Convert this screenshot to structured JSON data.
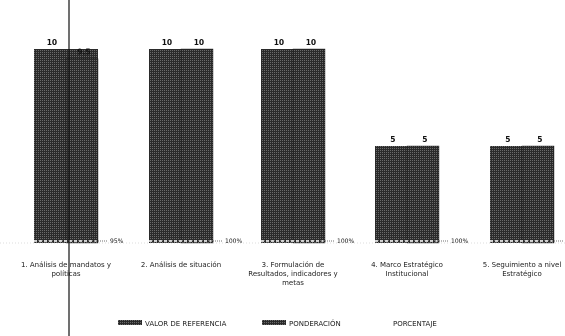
{
  "chart_data": {
    "type": "bar",
    "categories": [
      [
        "1. Análisis de mandatos y",
        "políticas"
      ],
      [
        "2. Análisis de situación"
      ],
      [
        "3. Formulación de",
        "Resultados, indicadores y",
        "metas"
      ],
      [
        "4. Marco Estratégico",
        "Institucional"
      ],
      [
        "5. Seguimiento a nivel",
        "Estratégico"
      ]
    ],
    "series": [
      {
        "name": "VALOR DE REFERENCIA",
        "values": [
          10,
          10,
          10,
          5,
          5
        ],
        "color": "#1a1a1a"
      },
      {
        "name": "PONDERACIÓN",
        "values": [
          9.5,
          10,
          10,
          5,
          5
        ],
        "color": "#3a3a3a"
      },
      {
        "name": "PORCENTAJE",
        "values": [
          "95%",
          "100%",
          "100%",
          "100%",
          "100%"
        ],
        "color": "#ffffff"
      }
    ],
    "value_labels": {
      "reference": [
        "10",
        "10",
        "10",
        "5",
        "5"
      ],
      "weighting": [
        "9.5",
        "10",
        "10",
        "5",
        "5"
      ],
      "percent": [
        "95%",
        "100%",
        "100%",
        "100%",
        "100%"
      ]
    },
    "ylim": [
      0,
      10
    ],
    "grid": false,
    "legend_position": "bottom"
  }
}
